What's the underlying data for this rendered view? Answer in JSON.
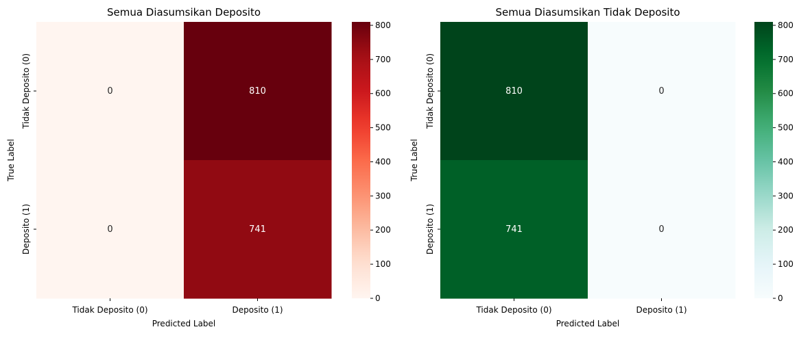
{
  "chart_data": [
    {
      "type": "heatmap",
      "title": "Semua Diasumsikan Deposito",
      "xlabel": "Predicted Label",
      "ylabel": "True Label",
      "x_categories": [
        "Tidak Deposito (0)",
        "Deposito (1)"
      ],
      "y_categories": [
        "Tidak Deposito (0)",
        "Deposito (1)"
      ],
      "values": [
        [
          0,
          810
        ],
        [
          0,
          741
        ]
      ],
      "cell_labels": [
        [
          "0",
          "810"
        ],
        [
          "0",
          "741"
        ]
      ],
      "colormap": "Reds",
      "color_range": [
        0,
        810
      ],
      "colorbar_ticks": [
        0,
        100,
        200,
        300,
        400,
        500,
        600,
        700,
        800
      ],
      "colorbar_tick_labels": [
        "0",
        "100",
        "200",
        "300",
        "400",
        "500",
        "600",
        "700",
        "800"
      ]
    },
    {
      "type": "heatmap",
      "title": "Semua Diasumsikan Tidak Deposito",
      "xlabel": "Predicted Label",
      "ylabel": "True Label",
      "x_categories": [
        "Tidak Deposito (0)",
        "Deposito (1)"
      ],
      "y_categories": [
        "Tidak Deposito (0)",
        "Deposito (1)"
      ],
      "values": [
        [
          810,
          0
        ],
        [
          741,
          0
        ]
      ],
      "cell_labels": [
        [
          "810",
          "0"
        ],
        [
          "741",
          "0"
        ]
      ],
      "colormap": "Greens",
      "color_range": [
        0,
        810
      ],
      "colorbar_ticks": [
        0,
        100,
        200,
        300,
        400,
        500,
        600,
        700,
        800
      ],
      "colorbar_tick_labels": [
        "0",
        "100",
        "200",
        "300",
        "400",
        "500",
        "600",
        "700",
        "800"
      ]
    }
  ]
}
